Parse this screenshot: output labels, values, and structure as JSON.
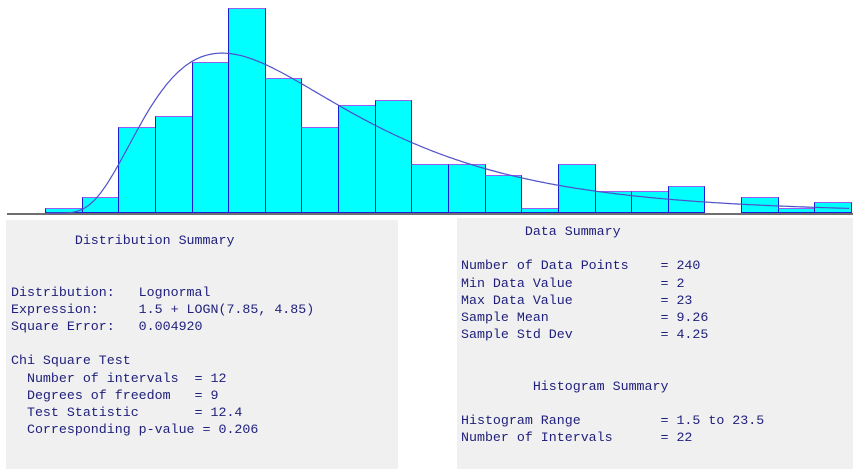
{
  "chart_data": {
    "type": "bar",
    "subtype": "histogram-with-fit",
    "title": "",
    "xlabel": "",
    "ylabel": "",
    "xlim": [
      1.5,
      23.5
    ],
    "bin_start": 1.5,
    "bin_width": 1,
    "num_intervals": 22,
    "counts": [
      1,
      3,
      16,
      18,
      28,
      38,
      25,
      16,
      20,
      21,
      9,
      9,
      7,
      1,
      9,
      4,
      4,
      5,
      0,
      3,
      1,
      2
    ],
    "total_points": 240,
    "max_count": 38,
    "grid": false,
    "legend": false,
    "fit_curve": {
      "type": "lognormal",
      "expression": "1.5 + LOGN(7.85, 4.85)",
      "offset": 1.5,
      "mean": 7.85,
      "std_dev": 4.85
    },
    "colors": {
      "bar_fill": "#00ffff",
      "bar_border": "#1c1cd8",
      "bar_border_top": "#985cf2",
      "curve": "#4f4fca",
      "axis": "#6f6f6f"
    }
  },
  "colors": {
    "panel_background": "#f0f0f0",
    "panel_text": "#20207c",
    "page_background": "#ffffff"
  },
  "panels": {
    "left": {
      "name": "Distribution Summary",
      "lines": [
        {
          "type": "title",
          "text": "        Distribution Summary"
        },
        {
          "type": "blank",
          "text": ""
        },
        {
          "type": "blank",
          "text": ""
        },
        {
          "type": "row",
          "text": "Distribution:   Lognormal"
        },
        {
          "type": "row",
          "text": "Expression:     1.5 + LOGN(7.85, 4.85)"
        },
        {
          "type": "row",
          "text": "Square Error:   0.004920"
        },
        {
          "type": "blank",
          "text": ""
        },
        {
          "type": "row",
          "text": "Chi Square Test"
        },
        {
          "type": "row",
          "text": "  Number of intervals  = 12"
        },
        {
          "type": "row",
          "text": "  Degrees of freedom   = 9"
        },
        {
          "type": "row",
          "text": "  Test Statistic       = 12.4"
        },
        {
          "type": "row",
          "text": "  Corresponding p-value = 0.206"
        }
      ]
    },
    "right": {
      "name": "Data Summary",
      "lines": [
        {
          "type": "title",
          "text": "        Data Summary"
        },
        {
          "type": "blank",
          "text": ""
        },
        {
          "type": "row",
          "text": "Number of Data Points    = 240"
        },
        {
          "type": "row",
          "text": "Min Data Value           = 2"
        },
        {
          "type": "row",
          "text": "Max Data Value           = 23"
        },
        {
          "type": "row",
          "text": "Sample Mean              = 9.26"
        },
        {
          "type": "row",
          "text": "Sample Std Dev           = 4.25"
        },
        {
          "type": "blank",
          "text": ""
        },
        {
          "type": "blank",
          "text": ""
        },
        {
          "type": "title",
          "text": "         Histogram Summary"
        },
        {
          "type": "blank",
          "text": ""
        },
        {
          "type": "row",
          "text": "Histogram Range          = 1.5 to 23.5"
        },
        {
          "type": "row",
          "text": "Number of Intervals      = 22"
        }
      ]
    }
  }
}
